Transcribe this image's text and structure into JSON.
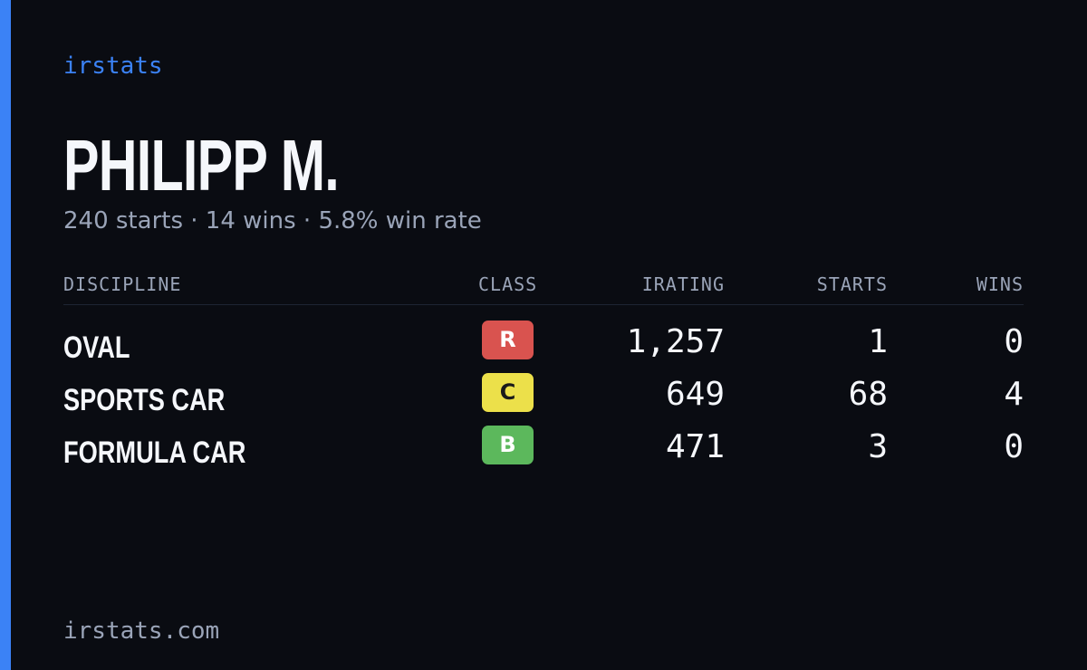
{
  "brand": "irstats",
  "player": {
    "name": "PHILIPP M.",
    "summary": "240 starts · 14 wins · 5.8% win rate"
  },
  "table": {
    "headers": {
      "discipline": "DISCIPLINE",
      "class": "CLASS",
      "irating": "IRATING",
      "starts": "STARTS",
      "wins": "WINS"
    },
    "rows": [
      {
        "discipline": "OVAL",
        "class": "R",
        "class_color": "#d9534f",
        "class_text_color": "#ffffff",
        "irating": "1,257",
        "starts": "1",
        "wins": "0"
      },
      {
        "discipline": "SPORTS CAR",
        "class": "C",
        "class_color": "#ece04a",
        "class_text_color": "#1a1a1a",
        "irating": "649",
        "starts": "68",
        "wins": "4"
      },
      {
        "discipline": "FORMULA CAR",
        "class": "B",
        "class_color": "#5cb85c",
        "class_text_color": "#ffffff",
        "irating": "471",
        "starts": "3",
        "wins": "0"
      }
    ]
  },
  "footer": "irstats.com",
  "colors": {
    "accent": "#3b82f6",
    "background": "#0a0c12",
    "muted_text": "#9aa4b8"
  }
}
